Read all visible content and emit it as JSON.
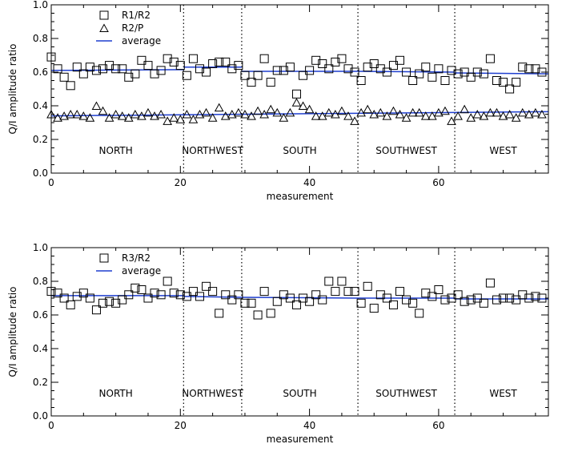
{
  "chart_data": [
    {
      "type": "scatter",
      "xlabel": "measurement",
      "ylabel": "Q/I amplitude ratio",
      "xlim": [
        0,
        77
      ],
      "ylim": [
        0.0,
        1.0
      ],
      "xticks": [
        0,
        20,
        40,
        60
      ],
      "yticks": [
        "0.0",
        "0.2",
        "0.4",
        "0.6",
        "0.8",
        "1.0"
      ],
      "region_boundaries": [
        20.5,
        29.5,
        47.5,
        62.5
      ],
      "regions": [
        {
          "label": "NORTH",
          "x": 10
        },
        {
          "label": "NORTHWEST",
          "x": 25
        },
        {
          "label": "SOUTH",
          "x": 38.5
        },
        {
          "label": "SOUTHWEST",
          "x": 55
        },
        {
          "label": "WEST",
          "x": 70
        }
      ],
      "legend": [
        {
          "label": "R1/R2",
          "marker": "square"
        },
        {
          "label": "R2/P",
          "marker": "triangle"
        },
        {
          "label": "average",
          "marker": "line"
        }
      ],
      "series": [
        {
          "name": "R1/R2",
          "marker": "square",
          "x": [
            0,
            1,
            2,
            3,
            4,
            5,
            6,
            7,
            8,
            9,
            10,
            11,
            12,
            13,
            14,
            15,
            16,
            17,
            18,
            19,
            20,
            21,
            22,
            23,
            24,
            25,
            26,
            27,
            28,
            29,
            30,
            31,
            32,
            33,
            34,
            35,
            36,
            37,
            38,
            39,
            40,
            41,
            42,
            43,
            44,
            45,
            46,
            47,
            48,
            49,
            50,
            51,
            52,
            53,
            54,
            55,
            56,
            57,
            58,
            59,
            60,
            61,
            62,
            63,
            64,
            65,
            66,
            67,
            68,
            69,
            70,
            71,
            72,
            73,
            74,
            75,
            76
          ],
          "y": [
            0.69,
            0.62,
            0.57,
            0.52,
            0.63,
            0.59,
            0.63,
            0.61,
            0.62,
            0.64,
            0.62,
            0.62,
            0.57,
            0.59,
            0.67,
            0.64,
            0.59,
            0.61,
            0.68,
            0.66,
            0.64,
            0.58,
            0.68,
            0.62,
            0.6,
            0.65,
            0.66,
            0.66,
            0.62,
            0.64,
            0.58,
            0.54,
            0.58,
            0.68,
            0.54,
            0.61,
            0.61,
            0.63,
            0.47,
            0.58,
            0.61,
            0.67,
            0.65,
            0.62,
            0.66,
            0.68,
            0.62,
            0.6,
            0.55,
            0.63,
            0.65,
            0.62,
            0.6,
            0.64,
            0.67,
            0.6,
            0.55,
            0.59,
            0.63,
            0.57,
            0.62,
            0.55,
            0.61,
            0.59,
            0.6,
            0.57,
            0.6,
            0.59,
            0.68,
            0.55,
            0.54,
            0.5,
            0.54,
            0.63,
            0.62,
            0.62,
            0.6
          ]
        },
        {
          "name": "R2/P",
          "marker": "triangle",
          "x": [
            0,
            1,
            2,
            3,
            4,
            5,
            6,
            7,
            8,
            9,
            10,
            11,
            12,
            13,
            14,
            15,
            16,
            17,
            18,
            19,
            20,
            21,
            22,
            23,
            24,
            25,
            26,
            27,
            28,
            29,
            30,
            31,
            32,
            33,
            34,
            35,
            36,
            37,
            38,
            39,
            40,
            41,
            42,
            43,
            44,
            45,
            46,
            47,
            48,
            49,
            50,
            51,
            52,
            53,
            54,
            55,
            56,
            57,
            58,
            59,
            60,
            61,
            62,
            63,
            64,
            65,
            66,
            67,
            68,
            69,
            70,
            71,
            72,
            73,
            74,
            75,
            76
          ],
          "y": [
            0.35,
            0.33,
            0.34,
            0.35,
            0.35,
            0.34,
            0.33,
            0.4,
            0.37,
            0.33,
            0.35,
            0.34,
            0.33,
            0.35,
            0.34,
            0.36,
            0.34,
            0.35,
            0.31,
            0.33,
            0.32,
            0.35,
            0.32,
            0.35,
            0.36,
            0.33,
            0.39,
            0.34,
            0.35,
            0.36,
            0.35,
            0.34,
            0.37,
            0.35,
            0.38,
            0.36,
            0.33,
            0.36,
            0.42,
            0.4,
            0.38,
            0.34,
            0.34,
            0.36,
            0.35,
            0.37,
            0.34,
            0.31,
            0.36,
            0.38,
            0.35,
            0.36,
            0.34,
            0.37,
            0.35,
            0.33,
            0.36,
            0.36,
            0.34,
            0.34,
            0.36,
            0.37,
            0.31,
            0.34,
            0.38,
            0.33,
            0.35,
            0.34,
            0.36,
            0.36,
            0.34,
            0.35,
            0.33,
            0.36,
            0.35,
            0.36,
            0.35
          ]
        }
      ],
      "average_segments": [
        {
          "x": [
            0,
            20.5
          ],
          "y": [
            0.61,
            0.615
          ]
        },
        {
          "x": [
            20.5,
            29.5
          ],
          "y": [
            0.63,
            0.63
          ]
        },
        {
          "x": [
            29.5,
            47.5
          ],
          "y": [
            0.605,
            0.605
          ]
        },
        {
          "x": [
            47.5,
            62.5
          ],
          "y": [
            0.605,
            0.6
          ]
        },
        {
          "x": [
            62.5,
            77
          ],
          "y": [
            0.595,
            0.59
          ]
        },
        {
          "x": [
            0,
            77
          ],
          "y": [
            0.34,
            0.365
          ]
        }
      ]
    },
    {
      "type": "scatter",
      "xlabel": "measurement",
      "ylabel": "Q/I amplitude ratio",
      "xlim": [
        0,
        77
      ],
      "ylim": [
        0.0,
        1.0
      ],
      "xticks": [
        0,
        20,
        40,
        60
      ],
      "yticks": [
        "0.0",
        "0.2",
        "0.4",
        "0.6",
        "0.8",
        "1.0"
      ],
      "region_boundaries": [
        20.5,
        29.5,
        47.5,
        62.5
      ],
      "regions": [
        {
          "label": "NORTH",
          "x": 10
        },
        {
          "label": "NORTHWEST",
          "x": 25
        },
        {
          "label": "SOUTH",
          "x": 38.5
        },
        {
          "label": "SOUTHWEST",
          "x": 55
        },
        {
          "label": "WEST",
          "x": 70
        }
      ],
      "legend": [
        {
          "label": "R3/R2",
          "marker": "square"
        },
        {
          "label": "average",
          "marker": "line"
        }
      ],
      "series": [
        {
          "name": "R3/R2",
          "marker": "square",
          "x": [
            0,
            1,
            2,
            3,
            4,
            5,
            6,
            7,
            8,
            9,
            10,
            11,
            12,
            13,
            14,
            15,
            16,
            17,
            18,
            19,
            20,
            21,
            22,
            23,
            24,
            25,
            26,
            27,
            28,
            29,
            30,
            31,
            32,
            33,
            34,
            35,
            36,
            37,
            38,
            39,
            40,
            41,
            42,
            43,
            44,
            45,
            46,
            47,
            48,
            49,
            50,
            51,
            52,
            53,
            54,
            55,
            56,
            57,
            58,
            59,
            60,
            61,
            62,
            63,
            64,
            65,
            66,
            67,
            68,
            69,
            70,
            71,
            72,
            73,
            74,
            75,
            76
          ],
          "y": [
            0.74,
            0.73,
            0.7,
            0.66,
            0.71,
            0.73,
            0.7,
            0.63,
            0.67,
            0.68,
            0.67,
            0.69,
            0.72,
            0.76,
            0.75,
            0.7,
            0.73,
            0.72,
            0.8,
            0.73,
            0.72,
            0.71,
            0.74,
            0.71,
            0.77,
            0.74,
            0.61,
            0.72,
            0.69,
            0.72,
            0.67,
            0.67,
            0.6,
            0.74,
            0.61,
            0.68,
            0.72,
            0.7,
            0.66,
            0.7,
            0.68,
            0.72,
            0.69,
            0.8,
            0.74,
            0.8,
            0.74,
            0.74,
            0.67,
            0.77,
            0.64,
            0.72,
            0.7,
            0.66,
            0.74,
            0.69,
            0.67,
            0.61,
            0.73,
            0.71,
            0.75,
            0.69,
            0.7,
            0.72,
            0.68,
            0.69,
            0.7,
            0.67,
            0.79,
            0.69,
            0.7,
            0.7,
            0.69,
            0.72,
            0.7,
            0.71,
            0.7
          ]
        }
      ],
      "average_segments": [
        {
          "x": [
            0,
            20.5
          ],
          "y": [
            0.715,
            0.715
          ]
        },
        {
          "x": [
            20.5,
            29.5
          ],
          "y": [
            0.71,
            0.705
          ]
        },
        {
          "x": [
            29.5,
            47.5
          ],
          "y": [
            0.705,
            0.7
          ]
        },
        {
          "x": [
            47.5,
            62.5
          ],
          "y": [
            0.7,
            0.7
          ]
        },
        {
          "x": [
            62.5,
            77
          ],
          "y": [
            0.695,
            0.695
          ]
        }
      ]
    }
  ],
  "colors": {
    "average_line": "#1f3fcf",
    "markers": "#000000",
    "axes": "#000000",
    "background": "#ffffff"
  }
}
